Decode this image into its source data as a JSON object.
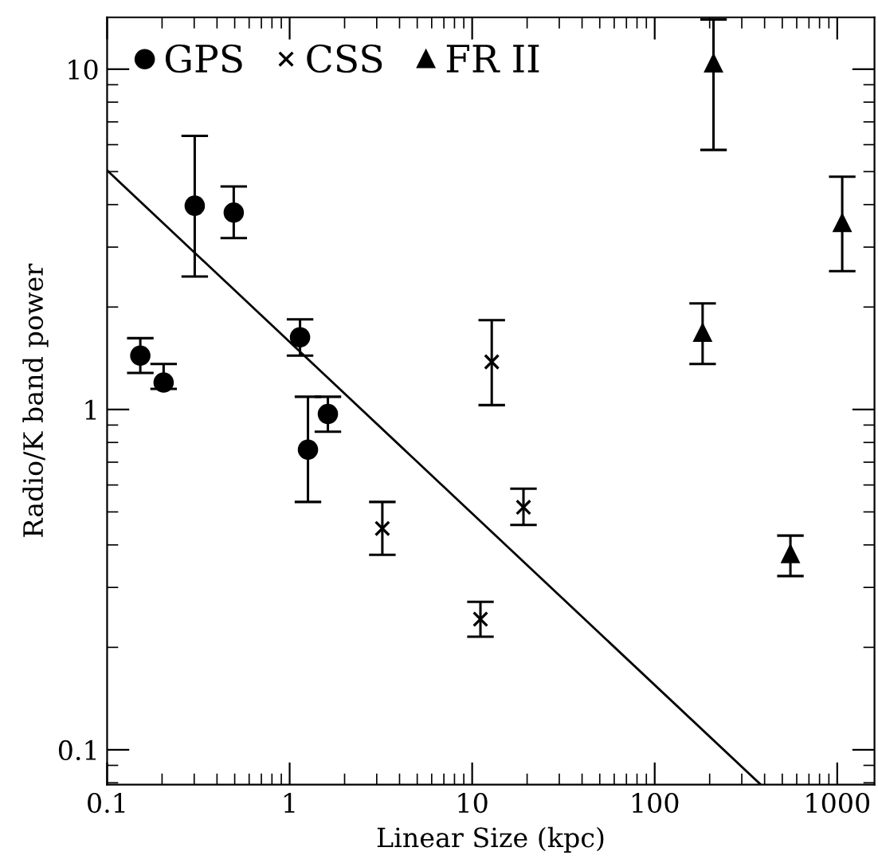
{
  "chart_data": {
    "type": "scatter",
    "xlabel": "Linear Size (kpc)",
    "ylabel": "Radio/K band power",
    "log": "xy",
    "xlim": [
      0.1,
      1600
    ],
    "ylim": [
      0.079,
      14.2
    ],
    "xticks": [
      0.1,
      1,
      10,
      100,
      1000
    ],
    "yticks": [
      0.1,
      1,
      10
    ],
    "grid": false,
    "legend": "top left",
    "series": [
      {
        "name": "GPS",
        "color": "#000000",
        "marker": "circle",
        "x": [
          0.152,
          0.204,
          0.302,
          0.494,
          1.14,
          1.26,
          1.62
        ],
        "values": [
          1.44,
          1.2,
          3.97,
          3.79,
          1.63,
          0.762,
          0.97
        ],
        "errors": [
          [
            1.28,
            1.62
          ],
          [
            1.15,
            1.36
          ],
          [
            2.46,
            6.37
          ],
          [
            3.19,
            4.52
          ],
          [
            1.44,
            1.84
          ],
          [
            0.535,
            1.09
          ],
          [
            0.86,
            1.09
          ]
        ]
      },
      {
        "name": "CSS",
        "color": "#000000",
        "marker": "cross",
        "x": [
          3.22,
          11.1,
          19.1,
          12.8
        ],
        "values": [
          0.447,
          0.242,
          0.516,
          1.38
        ],
        "errors": [
          [
            0.374,
            0.535
          ],
          [
            0.215,
            0.272
          ],
          [
            0.458,
            0.585
          ],
          [
            1.03,
            1.83
          ]
        ]
      },
      {
        "name": "FR II",
        "color": "#000000",
        "marker": "triangle",
        "x": [
          210,
          183,
          1065,
          554
        ],
        "values": [
          10.4,
          1.68,
          3.53,
          0.376
        ],
        "errors": [
          [
            5.79,
            14.0
          ],
          [
            1.36,
            2.05
          ],
          [
            2.55,
            4.83
          ],
          [
            0.324,
            0.426
          ]
        ]
      },
      {
        "type": "line",
        "color": "#000000",
        "marker": "none",
        "line_style": "solid",
        "x": [
          0.1,
          381
        ],
        "values": [
          5.04,
          0.079
        ]
      }
    ]
  }
}
